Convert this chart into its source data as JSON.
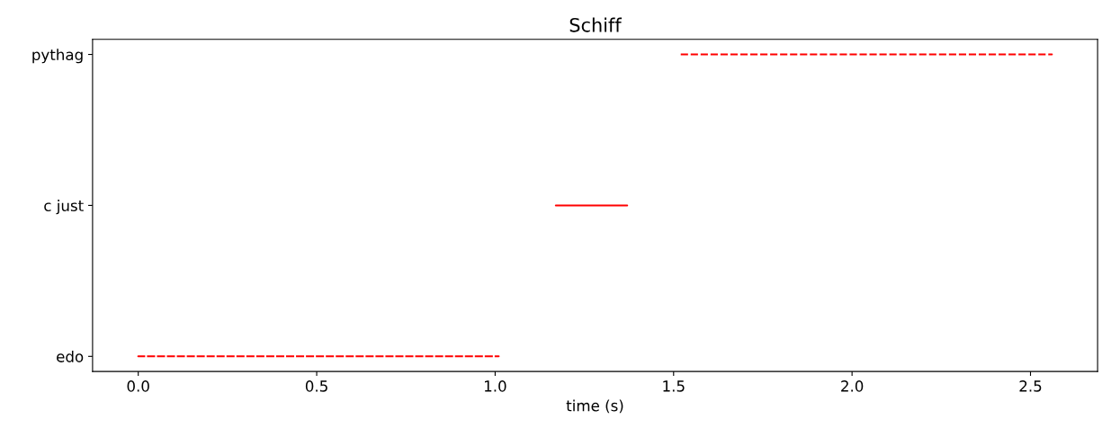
{
  "chart_data": {
    "type": "bar",
    "orientation": "horizontal",
    "title": "Schiff",
    "xlabel": "time (s)",
    "categories": [
      "pythag",
      "c just",
      "edo"
    ],
    "base": [
      1.52,
      1.17,
      0.0
    ],
    "values": [
      1.04,
      0.2,
      1.01
    ],
    "color": "#ff0000",
    "line_style": "dashed",
    "xlim": [
      -0.128,
      2.688
    ],
    "xticks": [
      {
        "value": 0,
        "label": "0.0"
      },
      0.5,
      {
        "value": 1,
        "label": "1.0"
      },
      1.5,
      {
        "value": 2,
        "label": "2.0"
      },
      2.5
    ],
    "grid": false,
    "legend": false
  }
}
